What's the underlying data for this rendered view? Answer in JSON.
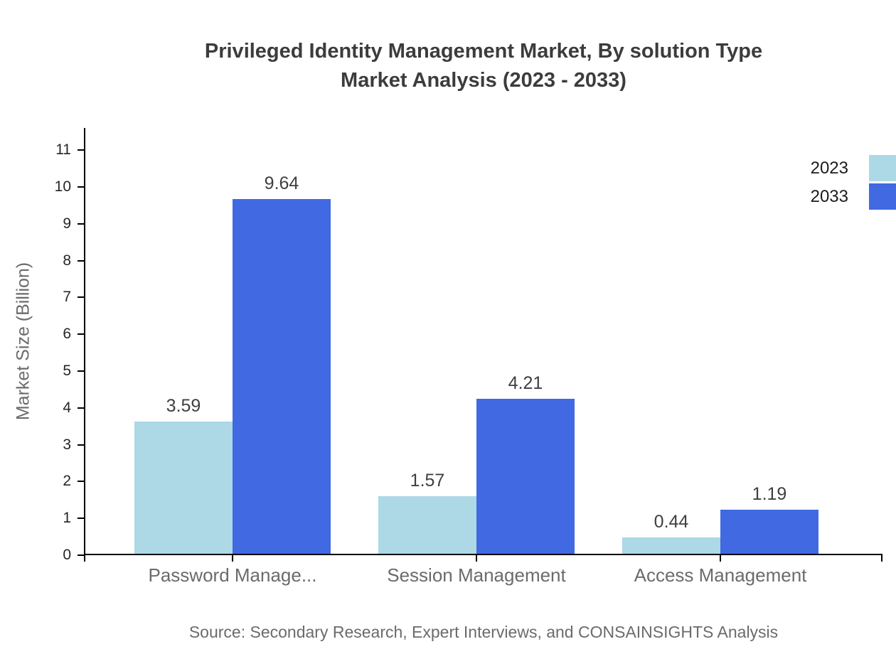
{
  "title": {
    "line1": "Privileged Identity Management Market, By solution Type",
    "line2": "Market Analysis (2023 - 2033)"
  },
  "y_axis": {
    "label": "Market Size (Billion)"
  },
  "footer": {
    "source": "Source: Secondary Research, Expert Interviews, and CONSAINSIGHTS Analysis"
  },
  "chart_data": {
    "type": "bar",
    "title": "Privileged Identity Management Market, By solution Type Market Analysis (2023 - 2033)",
    "categories": [
      "Password Manage...",
      "Session Management",
      "Access Management"
    ],
    "series": [
      {
        "name": "2023",
        "color": "#ADD8E6",
        "values": [
          3.59,
          1.57,
          0.44
        ]
      },
      {
        "name": "2033",
        "color": "#4169E1",
        "values": [
          9.64,
          4.21,
          1.19
        ]
      }
    ],
    "xlabel": "",
    "ylabel": "Market Size (Billion)",
    "ylim": [
      0,
      11.6
    ],
    "yticks": [
      0,
      1,
      2,
      3,
      4,
      5,
      6,
      7,
      8,
      9,
      10,
      11
    ],
    "grid": false,
    "value_labels": true,
    "legend_position": "top-right",
    "axis_color": "#000000"
  }
}
